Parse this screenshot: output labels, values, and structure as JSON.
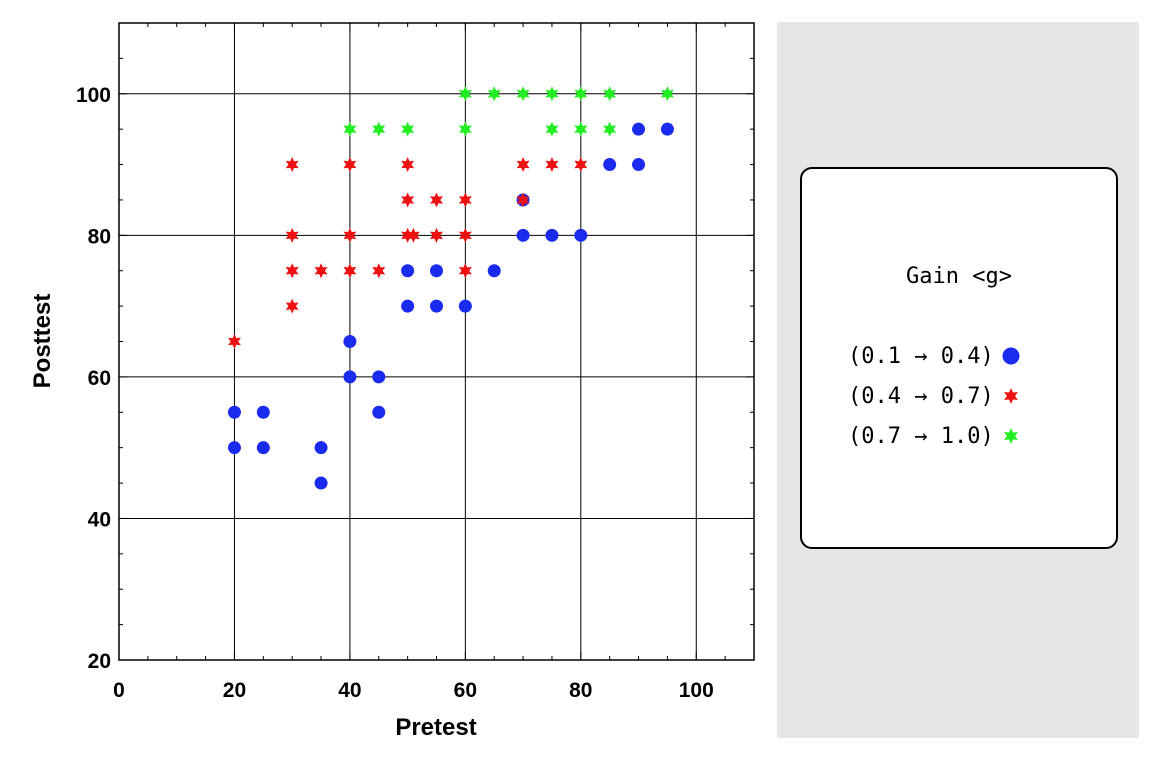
{
  "chart_data": {
    "type": "scatter",
    "xlabel": "Pretest",
    "ylabel": "Posttest",
    "xlim": [
      0,
      110
    ],
    "ylim": [
      20,
      110
    ],
    "xticks": [
      0,
      20,
      40,
      60,
      80,
      100
    ],
    "yticks": [
      20,
      40,
      60,
      80,
      100
    ],
    "grid": true,
    "legend_position": "right",
    "series": [
      {
        "name": "(0.1 → 0.4)",
        "marker": "circle",
        "color": "#1a2bf0",
        "points": [
          [
            20,
            55
          ],
          [
            25,
            55
          ],
          [
            20,
            50
          ],
          [
            25,
            50
          ],
          [
            35,
            50
          ],
          [
            35,
            45
          ],
          [
            40,
            65
          ],
          [
            40,
            60
          ],
          [
            45,
            60
          ],
          [
            45,
            55
          ],
          [
            50,
            75
          ],
          [
            55,
            75
          ],
          [
            50,
            70
          ],
          [
            55,
            70
          ],
          [
            60,
            70
          ],
          [
            65,
            75
          ],
          [
            70,
            85
          ],
          [
            70,
            80
          ],
          [
            75,
            80
          ],
          [
            80,
            80
          ],
          [
            85,
            90
          ],
          [
            90,
            90
          ],
          [
            90,
            95
          ],
          [
            95,
            95
          ]
        ]
      },
      {
        "name": "(0.4 → 0.7)",
        "marker": "star",
        "color": "#ee1111",
        "points": [
          [
            20,
            65
          ],
          [
            30,
            90
          ],
          [
            30,
            80
          ],
          [
            30,
            75
          ],
          [
            30,
            70
          ],
          [
            35,
            75
          ],
          [
            40,
            90
          ],
          [
            40,
            80
          ],
          [
            40,
            75
          ],
          [
            45,
            75
          ],
          [
            50,
            90
          ],
          [
            50,
            85
          ],
          [
            50,
            80
          ],
          [
            51,
            80
          ],
          [
            55,
            85
          ],
          [
            55,
            80
          ],
          [
            60,
            85
          ],
          [
            60,
            80
          ],
          [
            60,
            75
          ],
          [
            70,
            90
          ],
          [
            70,
            85
          ],
          [
            75,
            90
          ],
          [
            80,
            90
          ]
        ]
      },
      {
        "name": "(0.7 → 1.0)",
        "marker": "star",
        "color": "#22ee22",
        "points": [
          [
            40,
            95
          ],
          [
            45,
            95
          ],
          [
            50,
            95
          ],
          [
            60,
            100
          ],
          [
            60,
            95
          ],
          [
            65,
            100
          ],
          [
            70,
            100
          ],
          [
            75,
            100
          ],
          [
            75,
            95
          ],
          [
            80,
            100
          ],
          [
            80,
            95
          ],
          [
            85,
            100
          ],
          [
            85,
            95
          ],
          [
            95,
            100
          ]
        ]
      }
    ]
  },
  "legend": {
    "title": "Gain <g>",
    "items": [
      {
        "label": "(0.1 → 0.4)",
        "marker": "circle",
        "color": "#1a2bf0"
      },
      {
        "label": "(0.4 → 0.7)",
        "marker": "star",
        "color": "#ee1111"
      },
      {
        "label": "(0.7 → 1.0)",
        "marker": "star",
        "color": "#22ee22"
      }
    ]
  }
}
